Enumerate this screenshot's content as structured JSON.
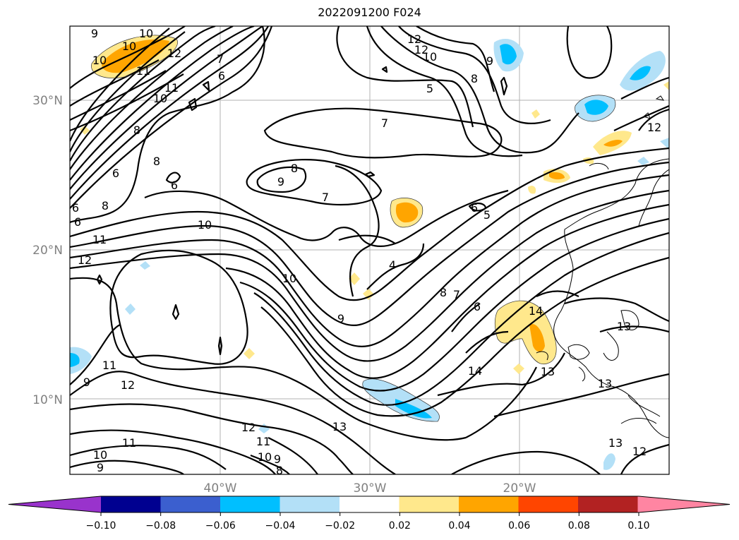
{
  "title": "2022091200 F024",
  "map": {
    "lat_labels": [
      "30°N",
      "20°N",
      "10°N"
    ],
    "lon_labels": [
      "40°W",
      "30°W",
      "20°W"
    ],
    "contour_labels": [
      "9",
      "10",
      "10",
      "10",
      "11",
      "12",
      "7",
      "6",
      "11",
      "10",
      "8",
      "8",
      "6",
      "6",
      "6",
      "8",
      "10",
      "11",
      "12",
      "6",
      "12",
      "12",
      "10",
      "9",
      "5",
      "8",
      "7",
      "8",
      "9",
      "7",
      "5",
      "6",
      "4",
      "10",
      "9",
      "8",
      "7",
      "6",
      "14",
      "14",
      "13",
      "13",
      "13",
      "13",
      "12",
      "13",
      "12",
      "11",
      "9",
      "10",
      "9",
      "8",
      "11",
      "12",
      "10",
      "9",
      "11",
      "12"
    ],
    "colors": {
      "light_blue": "#b3e0f7",
      "cyan": "#00bfff",
      "light_yellow": "#ffe88c",
      "orange": "#ffa500"
    }
  },
  "colorbar": {
    "ticks": [
      "−0.10",
      "−0.08",
      "−0.06",
      "−0.04",
      "−0.02",
      "0.02",
      "0.04",
      "0.06",
      "0.08",
      "0.10"
    ],
    "colors": [
      "#9933cc",
      "#3a2fc0",
      "#000090",
      "#3b5fcf",
      "#00bfff",
      "#b3e0f7",
      "#ffffff",
      "#ffe88c",
      "#ffa500",
      "#ff4500",
      "#b22222",
      "#ff85a2"
    ]
  }
}
